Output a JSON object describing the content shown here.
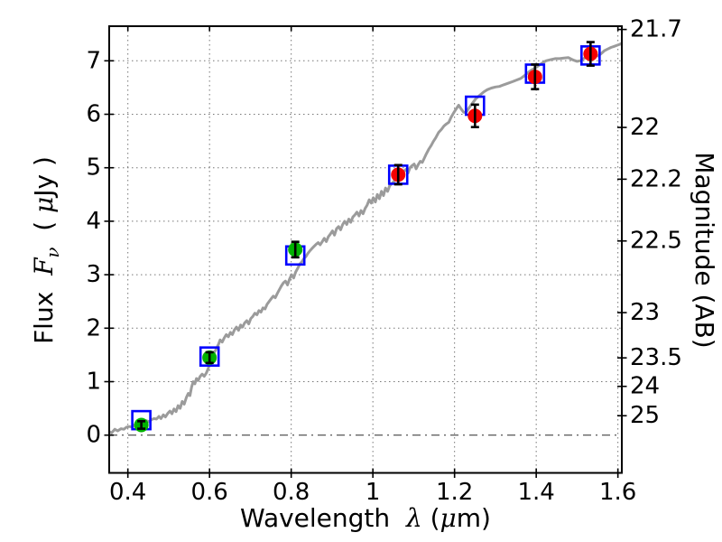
{
  "figure": {
    "background": "#ffffff"
  },
  "chart_data": {
    "type": "line",
    "title": "",
    "xlabel": "Wavelength  λ (μm)",
    "xlabel_parts": [
      {
        "t": "Wavelength  ",
        "s": "plain"
      },
      {
        "t": "λ",
        "s": "math"
      },
      {
        "t": " (",
        "s": "plain"
      },
      {
        "t": "μ",
        "s": "math"
      },
      {
        "t": "m)",
        "s": "plain"
      }
    ],
    "ylabel_left": "Flux  Fν  ( μJy )",
    "ylabel_left_parts": [
      {
        "t": "Flux  ",
        "s": "plain"
      },
      {
        "t": "F",
        "s": "math"
      },
      {
        "t": "ν",
        "s": "math-sub"
      },
      {
        "t": "  ( ",
        "s": "plain"
      },
      {
        "t": "μ",
        "s": "math"
      },
      {
        "t": "Jy )",
        "s": "plain"
      }
    ],
    "ylabel_right": "Magnitude (AB)",
    "xlim": [
      0.3543,
      1.6096
    ],
    "ylim": [
      -0.706,
      7.647
    ],
    "grid": true,
    "xticks": [
      {
        "value": 0.4,
        "label": "0.4"
      },
      {
        "value": 0.6,
        "label": "0.6"
      },
      {
        "value": 0.8,
        "label": "0.8"
      },
      {
        "value": 1.0,
        "label": "1"
      },
      {
        "value": 1.2,
        "label": "1.2"
      },
      {
        "value": 1.4,
        "label": "1.4"
      },
      {
        "value": 1.6,
        "label": "1.6"
      }
    ],
    "yticks_left": [
      {
        "value": 0,
        "label": "0"
      },
      {
        "value": 1,
        "label": "1"
      },
      {
        "value": 2,
        "label": "2"
      },
      {
        "value": 3,
        "label": "3"
      },
      {
        "value": 4,
        "label": "4"
      },
      {
        "value": 5,
        "label": "5"
      },
      {
        "value": 6,
        "label": "6"
      },
      {
        "value": 7,
        "label": "7"
      }
    ],
    "yticks_right": [
      {
        "flux": 7.586,
        "label": "21.7"
      },
      {
        "flux": 5.754,
        "label": "22"
      },
      {
        "flux": 4.786,
        "label": "22.2"
      },
      {
        "flux": 3.631,
        "label": "22.5"
      },
      {
        "flux": 2.291,
        "label": "23"
      },
      {
        "flux": 1.445,
        "label": "23.5"
      },
      {
        "flux": 0.912,
        "label": "24"
      },
      {
        "flux": 0.363,
        "label": "25"
      }
    ],
    "zero_line_y": 0,
    "style": {
      "spectrum_color": "#9b9b9b",
      "square_color": "#0000ff",
      "errorbar_color": "#000000",
      "grid_color": "#777777",
      "zero_line_color": "#444444",
      "frame_color": "#000000"
    },
    "spectrum": {
      "name": "model-spectrum",
      "color": "#9b9b9b",
      "x": [
        0.354,
        0.36,
        0.368,
        0.375,
        0.383,
        0.39,
        0.397,
        0.404,
        0.411,
        0.418,
        0.425,
        0.432,
        0.439,
        0.445,
        0.452,
        0.458,
        0.464,
        0.47,
        0.476,
        0.481,
        0.487,
        0.492,
        0.498,
        0.503,
        0.508,
        0.513,
        0.518,
        0.523,
        0.528,
        0.533,
        0.538,
        0.543,
        0.548,
        0.552,
        0.556,
        0.56,
        0.564,
        0.568,
        0.572,
        0.577,
        0.582,
        0.587,
        0.592,
        0.597,
        0.602,
        0.607,
        0.612,
        0.617,
        0.622,
        0.626,
        0.631,
        0.636,
        0.641,
        0.646,
        0.651,
        0.656,
        0.661,
        0.666,
        0.671,
        0.676,
        0.681,
        0.686,
        0.691,
        0.696,
        0.701,
        0.706,
        0.711,
        0.716,
        0.721,
        0.726,
        0.731,
        0.736,
        0.741,
        0.746,
        0.751,
        0.756,
        0.761,
        0.766,
        0.771,
        0.776,
        0.781,
        0.786,
        0.791,
        0.796,
        0.801,
        0.806,
        0.811,
        0.816,
        0.821,
        0.826,
        0.831,
        0.836,
        0.841,
        0.846,
        0.851,
        0.856,
        0.861,
        0.866,
        0.871,
        0.876,
        0.881,
        0.886,
        0.891,
        0.896,
        0.901,
        0.906,
        0.911,
        0.916,
        0.921,
        0.926,
        0.931,
        0.936,
        0.941,
        0.946,
        0.951,
        0.956,
        0.961,
        0.966,
        0.971,
        0.976,
        0.981,
        0.986,
        0.991,
        0.996,
        1.001,
        1.006,
        1.011,
        1.016,
        1.021,
        1.026,
        1.031,
        1.036,
        1.041,
        1.046,
        1.051,
        1.056,
        1.061,
        1.066,
        1.071,
        1.076,
        1.081,
        1.086,
        1.091,
        1.096,
        1.101,
        1.106,
        1.111,
        1.116,
        1.121,
        1.126,
        1.131,
        1.137,
        1.143,
        1.148,
        1.154,
        1.161,
        1.168,
        1.174,
        1.18,
        1.186,
        1.192,
        1.198,
        1.204,
        1.21,
        1.216,
        1.222,
        1.228,
        1.234,
        1.24,
        1.246,
        1.252,
        1.258,
        1.264,
        1.272,
        1.28,
        1.29,
        1.3,
        1.31,
        1.32,
        1.331,
        1.342,
        1.352,
        1.362,
        1.371,
        1.38,
        1.389,
        1.397,
        1.406,
        1.413,
        1.424,
        1.435,
        1.446,
        1.457,
        1.468,
        1.479,
        1.486,
        1.492,
        1.5,
        1.508,
        1.516,
        1.525,
        1.533,
        1.541,
        1.547,
        1.552,
        1.56,
        1.567,
        1.575,
        1.583,
        1.591,
        1.598,
        1.605,
        1.61
      ],
      "y": [
        0.07,
        0.04,
        0.11,
        0.08,
        0.12,
        0.11,
        0.15,
        0.16,
        0.15,
        0.2,
        0.21,
        0.23,
        0.25,
        0.27,
        0.25,
        0.29,
        0.31,
        0.3,
        0.35,
        0.31,
        0.38,
        0.34,
        0.41,
        0.45,
        0.4,
        0.49,
        0.44,
        0.55,
        0.5,
        0.63,
        0.58,
        0.7,
        0.78,
        0.74,
        0.9,
        1.0,
        0.96,
        1.06,
        1.02,
        1.1,
        1.14,
        1.1,
        1.16,
        1.25,
        1.38,
        1.5,
        1.55,
        1.62,
        1.7,
        1.78,
        1.74,
        1.82,
        1.88,
        1.84,
        1.92,
        1.88,
        1.97,
        2.02,
        1.96,
        2.06,
        2.02,
        2.1,
        2.14,
        2.08,
        2.18,
        2.22,
        2.28,
        2.25,
        2.33,
        2.3,
        2.38,
        2.36,
        2.45,
        2.5,
        2.55,
        2.6,
        2.57,
        2.65,
        2.72,
        2.79,
        2.85,
        2.88,
        2.81,
        2.92,
        3.0,
        2.94,
        3.05,
        3.12,
        3.2,
        3.24,
        3.3,
        3.34,
        3.4,
        3.45,
        3.49,
        3.53,
        3.57,
        3.6,
        3.56,
        3.62,
        3.68,
        3.62,
        3.71,
        3.76,
        3.82,
        3.74,
        3.86,
        3.9,
        3.84,
        3.94,
        4.0,
        3.94,
        4.04,
        3.98,
        4.08,
        4.12,
        4.17,
        4.1,
        4.2,
        4.14,
        4.24,
        4.3,
        4.4,
        4.34,
        4.44,
        4.36,
        4.5,
        4.42,
        4.56,
        4.48,
        4.62,
        4.56,
        4.66,
        4.7,
        4.74,
        4.78,
        4.83,
        4.87,
        4.9,
        4.94,
        4.97,
        4.9,
        5.0,
        5.04,
        5.07,
        4.98,
        5.06,
        5.12,
        5.1,
        5.18,
        5.26,
        5.35,
        5.42,
        5.49,
        5.56,
        5.66,
        5.72,
        5.78,
        5.82,
        5.85,
        5.95,
        6.03,
        6.1,
        6.17,
        6.1,
        6.04,
        6.03,
        6.1,
        6.17,
        6.23,
        6.29,
        6.33,
        6.37,
        6.42,
        6.46,
        6.49,
        6.51,
        6.52,
        6.55,
        6.58,
        6.61,
        6.64,
        6.67,
        6.72,
        6.78,
        6.83,
        6.86,
        6.91,
        6.95,
        7.0,
        7.02,
        7.04,
        7.04,
        7.05,
        7.06,
        7.03,
        7.01,
        6.99,
        7.0,
        7.04,
        7.08,
        7.11,
        7.13,
        7.1,
        7.09,
        7.14,
        7.19,
        7.22,
        7.25,
        7.27,
        7.29,
        7.31,
        7.33
      ]
    },
    "model_photometry": {
      "name": "model-photometry",
      "marker": "open-square",
      "color": "#0000ff",
      "points": [
        {
          "x": 0.433,
          "y": 0.28
        },
        {
          "x": 0.6,
          "y": 1.47
        },
        {
          "x": 0.81,
          "y": 3.36
        },
        {
          "x": 1.062,
          "y": 4.87
        },
        {
          "x": 1.25,
          "y": 6.16
        },
        {
          "x": 1.397,
          "y": 6.76
        },
        {
          "x": 1.533,
          "y": 7.1
        }
      ]
    },
    "observed_photometry": {
      "name": "observed-photometry",
      "marker": "filled-circle",
      "points": [
        {
          "x": 0.433,
          "y": 0.19,
          "yerr": 0.07,
          "color": "#00b200"
        },
        {
          "x": 0.6,
          "y": 1.45,
          "yerr": 0.1,
          "color": "#00b200"
        },
        {
          "x": 0.81,
          "y": 3.47,
          "yerr": 0.145,
          "color": "#00b200"
        },
        {
          "x": 1.062,
          "y": 4.87,
          "yerr": 0.18,
          "color": "#f50000"
        },
        {
          "x": 1.25,
          "y": 5.97,
          "yerr": 0.21,
          "color": "#f50000"
        },
        {
          "x": 1.397,
          "y": 6.7,
          "yerr": 0.23,
          "color": "#f50000"
        },
        {
          "x": 1.533,
          "y": 7.13,
          "yerr": 0.22,
          "color": "#f50000"
        }
      ]
    }
  }
}
